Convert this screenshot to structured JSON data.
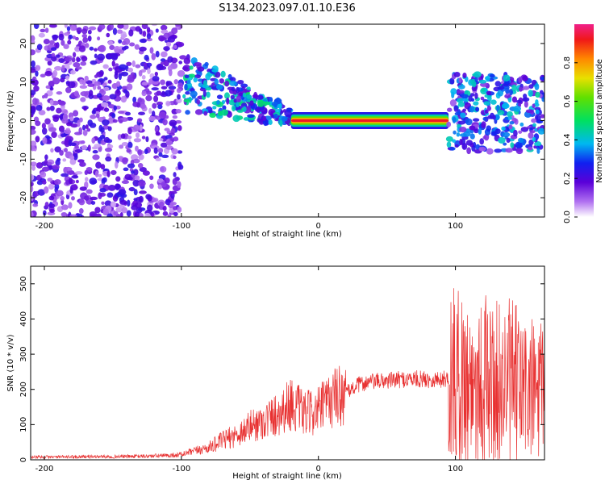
{
  "title": "S134.2023.097.01.10.E36",
  "chart_data": [
    {
      "type": "heatmap",
      "xlabel": "Height of straight line (km)",
      "ylabel": "Frequency (Hz)",
      "xlim": [
        -210,
        165
      ],
      "ylim": [
        -25,
        25
      ],
      "xticks": [
        -200,
        -100,
        0,
        100
      ],
      "yticks": [
        -20,
        -10,
        0,
        10,
        20
      ],
      "colorbar": {
        "label": "Normalized spectral amplitude",
        "range": [
          0,
          1
        ],
        "ticks": [
          0.0,
          0.2,
          0.4,
          0.6,
          0.8
        ]
      },
      "features": [
        {
          "region": "noise",
          "x": [
            -210,
            -100
          ],
          "freq_band": [
            -25,
            25
          ],
          "amplitude": [
            0.05,
            0.25
          ]
        },
        {
          "region": "dispersed",
          "x": [
            -100,
            -20
          ],
          "freq_center_start": 10,
          "freq_center_end": 1,
          "amplitude": [
            0.15,
            0.5
          ]
        },
        {
          "region": "carrier",
          "x": [
            -20,
            95
          ],
          "freq": 0,
          "amplitude": [
            0.7,
            1.0
          ]
        },
        {
          "region": "dispersed",
          "x": [
            95,
            165
          ],
          "freq_band": [
            -8,
            12
          ],
          "amplitude": [
            0.1,
            0.45
          ]
        }
      ]
    },
    {
      "type": "line",
      "xlabel": "Height of straight line (km)",
      "ylabel": "SNR (10 * v/v)",
      "xlim": [
        -210,
        165
      ],
      "ylim": [
        0,
        550
      ],
      "xticks": [
        -200,
        -100,
        0,
        100
      ],
      "yticks": [
        0,
        100,
        200,
        300,
        400,
        500
      ],
      "color": "#e83232",
      "series": [
        {
          "x": [
            -210,
            -190,
            -170,
            -150,
            -130,
            -110,
            -100,
            -90,
            -80,
            -70,
            -60,
            -50,
            -40,
            -30,
            -20,
            -10,
            0,
            10,
            20,
            30,
            40,
            50,
            60,
            70,
            80,
            90,
            95,
            100,
            110,
            120,
            130,
            140,
            150,
            160,
            165
          ],
          "values": [
            8,
            8,
            9,
            9,
            10,
            12,
            15,
            25,
            35,
            55,
            70,
            95,
            110,
            130,
            160,
            130,
            140,
            175,
            190,
            215,
            222,
            225,
            228,
            230,
            228,
            228,
            232,
            235,
            220,
            230,
            215,
            220,
            200,
            190,
            185
          ]
        }
      ]
    }
  ]
}
